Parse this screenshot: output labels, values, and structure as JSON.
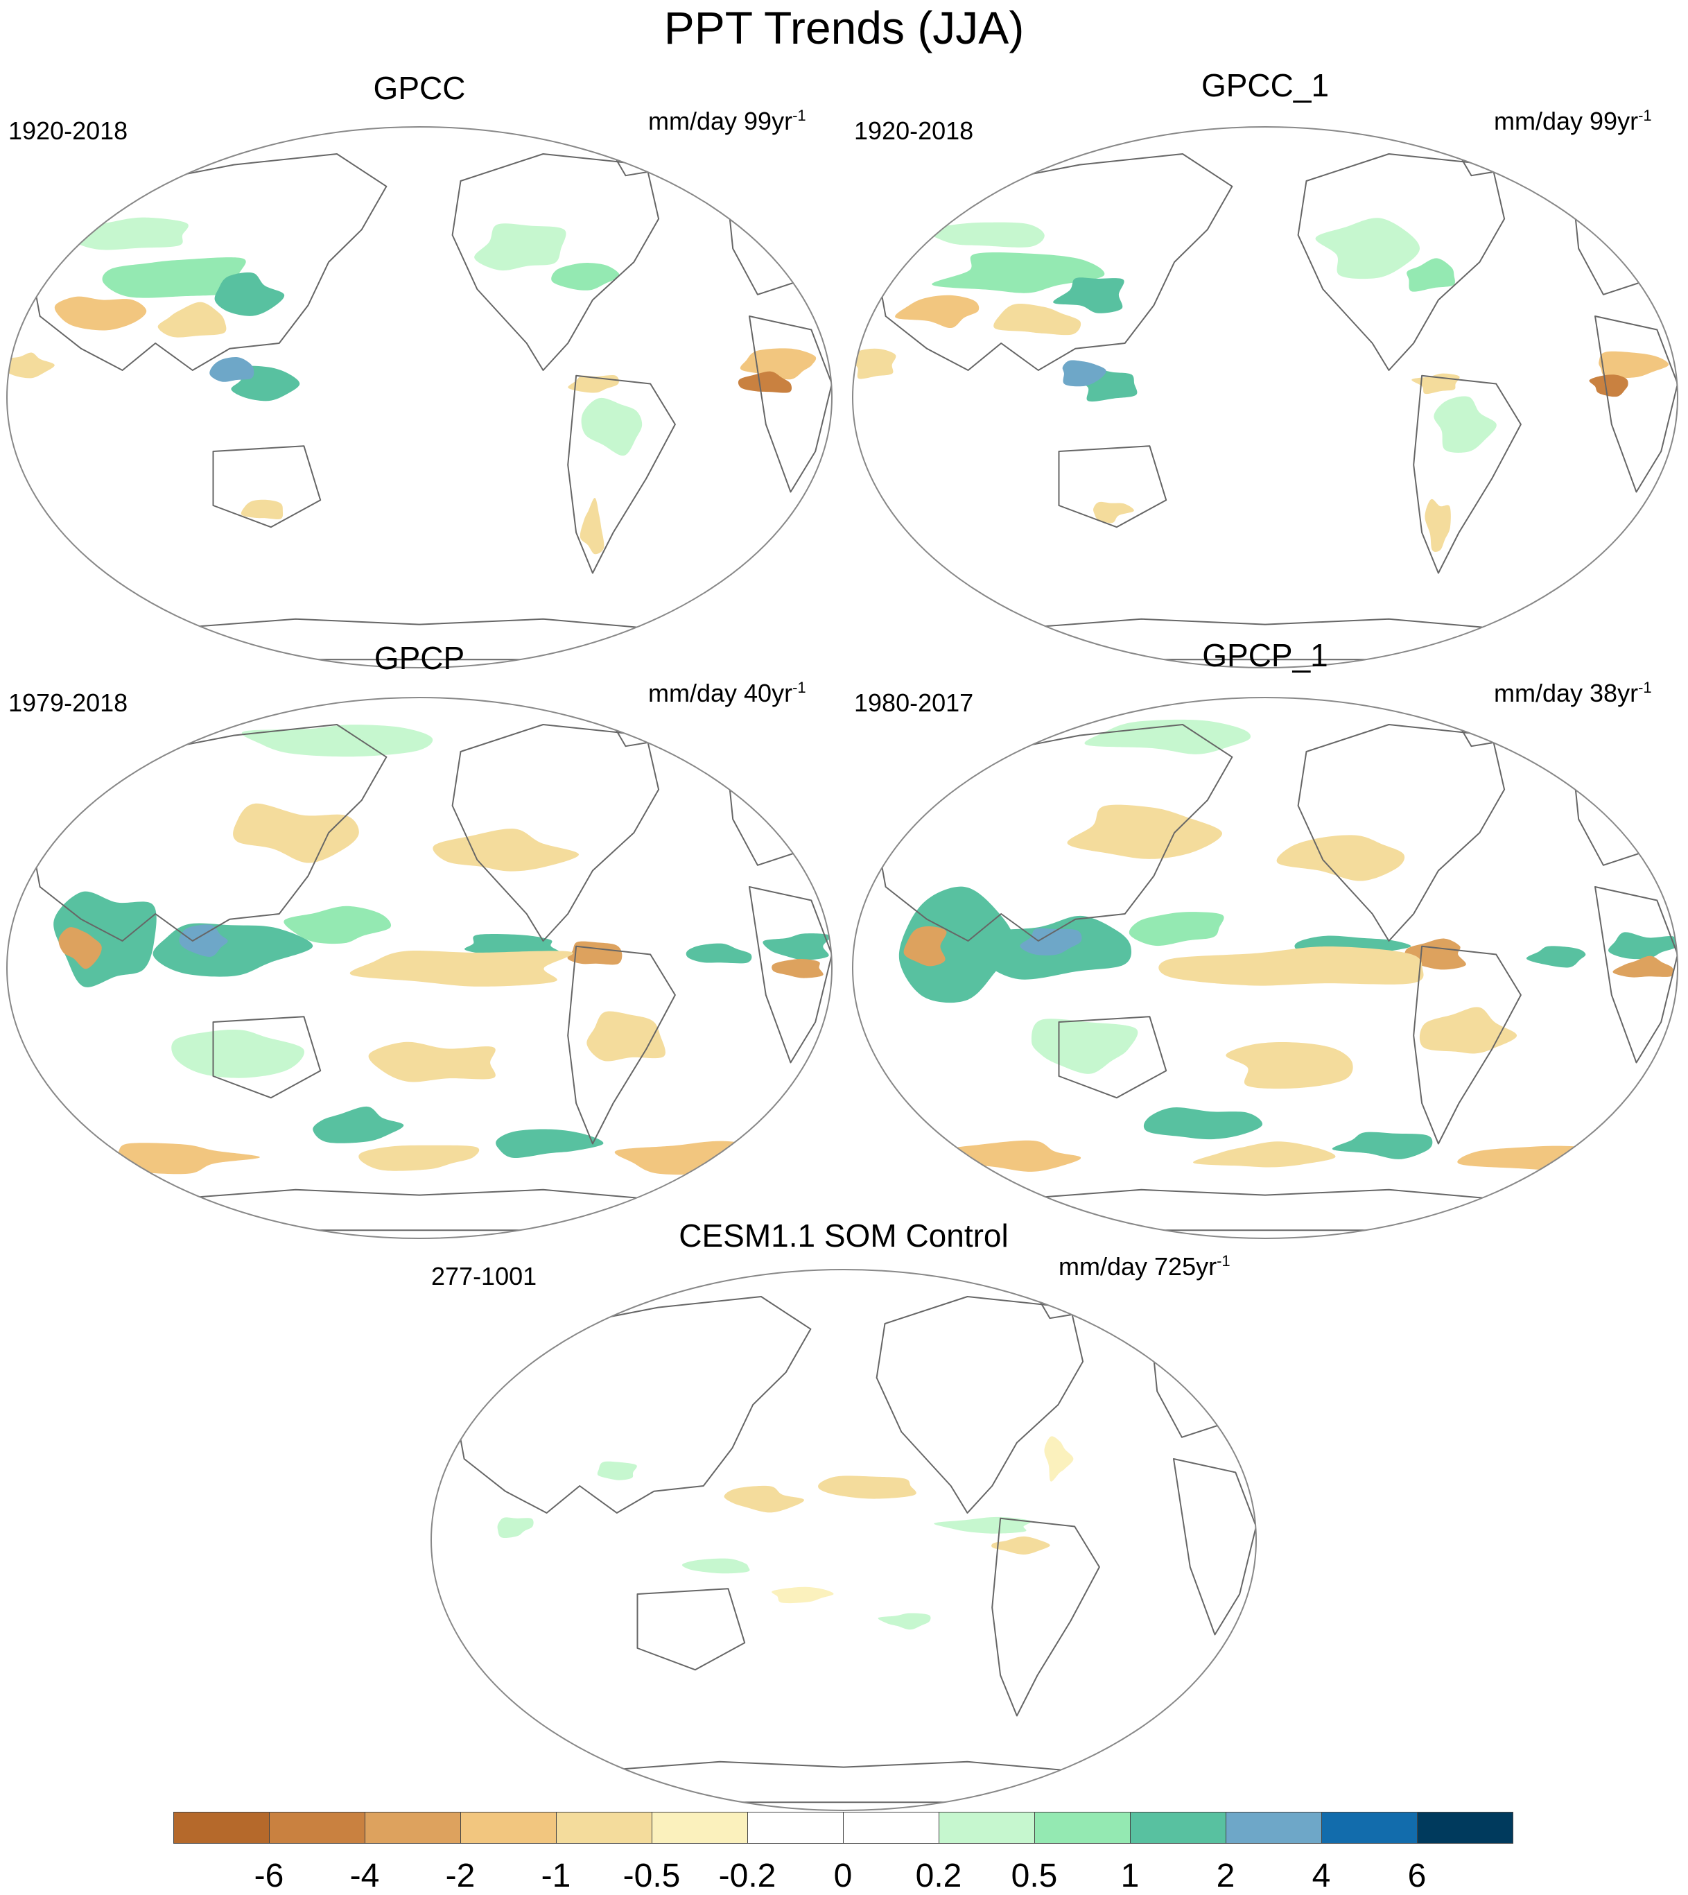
{
  "figure": {
    "title": "PPT Trends (JJA)"
  },
  "panels": [
    {
      "id": "gpcc",
      "title": "GPCC",
      "period": "1920-2018",
      "units": "mm/day 99yr",
      "units_exp": "-1",
      "pattern": "land"
    },
    {
      "id": "gpcc1",
      "title": "GPCC_1",
      "period": "1920-2018",
      "units": "mm/day 99yr",
      "units_exp": "-1",
      "pattern": "land"
    },
    {
      "id": "gpcp",
      "title": "GPCP",
      "period": "1979-2018",
      "units": "mm/day 40yr",
      "units_exp": "-1",
      "pattern": "global"
    },
    {
      "id": "gpcp1",
      "title": "GPCP_1",
      "period": "1980-2017",
      "units": "mm/day 38yr",
      "units_exp": "-1",
      "pattern": "global"
    },
    {
      "id": "cesm",
      "title": "CESM1.1 SOM Control",
      "period": "277-1001",
      "units": "mm/day 725yr",
      "units_exp": "-1",
      "pattern": "weak"
    }
  ],
  "colorbar": {
    "labels": [
      "-6",
      "-4",
      "-2",
      "-1",
      "-0.5",
      "-0.2",
      "0",
      "0.2",
      "0.5",
      "1",
      "2",
      "4",
      "6"
    ],
    "colors": [
      "#b5692b",
      "#c98140",
      "#dda25e",
      "#f2c67f",
      "#f4dc9c",
      "#fbf1bd",
      "#ffffff",
      "#ffffff",
      "#c6f7cf",
      "#94e9b2",
      "#58c1a0",
      "#6ea7c8",
      "#126cac",
      "#003a5d"
    ]
  }
}
